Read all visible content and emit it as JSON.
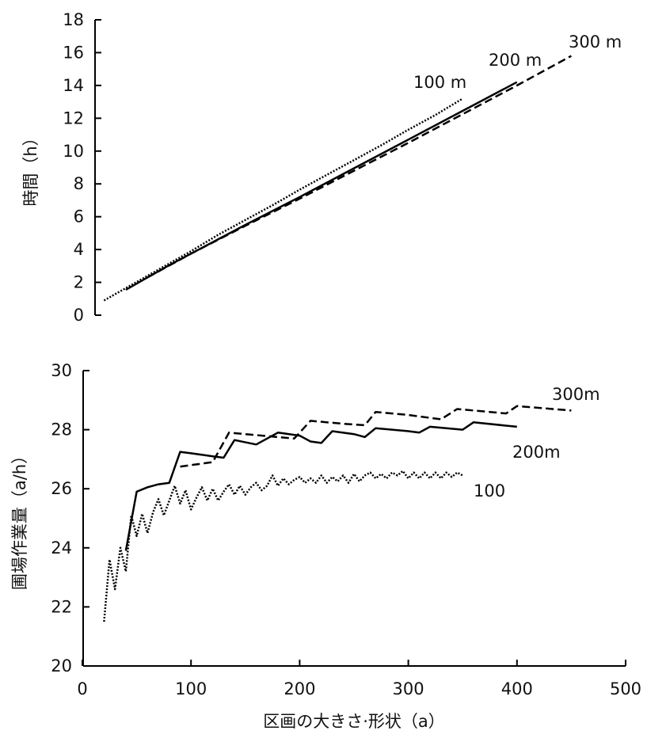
{
  "chart_data": [
    {
      "type": "line",
      "ylabel": "時間（h）",
      "xlabel": "",
      "xlim": [
        0,
        500
      ],
      "ylim": [
        0,
        18
      ],
      "yticks": [
        0,
        2,
        4,
        6,
        8,
        10,
        12,
        14,
        16,
        18
      ],
      "series": [
        {
          "name": "100 m",
          "style": "dotted",
          "x": [
            20,
            40,
            60,
            80,
            100,
            125,
            150,
            175,
            200,
            225,
            250,
            275,
            300,
            325,
            350
          ],
          "y": [
            0.9,
            1.65,
            2.4,
            3.15,
            3.9,
            4.9,
            5.8,
            6.7,
            7.65,
            8.55,
            9.45,
            10.35,
            11.3,
            12.2,
            13.2
          ]
        },
        {
          "name": "200 m",
          "style": "solid",
          "x": [
            40,
            60,
            80,
            100,
            150,
            200,
            250,
            300,
            350,
            400
          ],
          "y": [
            1.55,
            2.3,
            3.05,
            3.75,
            5.5,
            7.2,
            8.95,
            10.7,
            12.45,
            14.2
          ]
        },
        {
          "name": "300 m",
          "style": "dashed",
          "x": [
            60,
            100,
            150,
            200,
            250,
            300,
            350,
            400,
            450
          ],
          "y": [
            2.3,
            3.75,
            5.45,
            7.1,
            8.8,
            10.5,
            12.25,
            14.0,
            15.8
          ]
        }
      ]
    },
    {
      "type": "line",
      "ylabel": "圃場作業量（a/h）",
      "xlabel": "区画の大きさ·形状（a）",
      "xlim": [
        0,
        500
      ],
      "ylim": [
        20,
        30
      ],
      "xticks": [
        0,
        100,
        200,
        300,
        400,
        500
      ],
      "yticks": [
        20,
        22,
        24,
        26,
        28,
        30
      ],
      "series": [
        {
          "name": "100",
          "style": "dotted",
          "x": [
            20,
            25,
            30,
            35,
            40,
            45,
            50,
            55,
            60,
            65,
            70,
            75,
            80,
            85,
            90,
            95,
            100,
            105,
            110,
            115,
            120,
            125,
            130,
            135,
            140,
            145,
            150,
            155,
            160,
            165,
            170,
            175,
            180,
            185,
            190,
            195,
            200,
            205,
            210,
            215,
            220,
            225,
            230,
            235,
            240,
            245,
            250,
            255,
            260,
            265,
            270,
            275,
            280,
            285,
            290,
            295,
            300,
            305,
            310,
            315,
            320,
            325,
            330,
            335,
            340,
            345,
            350
          ],
          "y": [
            21.5,
            23.6,
            22.6,
            24.0,
            23.2,
            25.1,
            24.4,
            25.15,
            24.5,
            25.2,
            25.65,
            25.1,
            25.6,
            26.1,
            25.5,
            25.95,
            25.3,
            25.7,
            26.05,
            25.6,
            26.0,
            25.6,
            25.9,
            26.15,
            25.8,
            26.1,
            25.8,
            26.05,
            26.2,
            25.95,
            26.1,
            26.45,
            26.1,
            26.35,
            26.15,
            26.3,
            26.4,
            26.2,
            26.35,
            26.2,
            26.45,
            26.2,
            26.4,
            26.25,
            26.45,
            26.2,
            26.5,
            26.25,
            26.45,
            26.55,
            26.35,
            26.5,
            26.35,
            26.55,
            26.45,
            26.6,
            26.35,
            26.55,
            26.35,
            26.55,
            26.35,
            26.55,
            26.35,
            26.55,
            26.4,
            26.55,
            26.45
          ]
        },
        {
          "name": "200m",
          "style": "solid",
          "x": [
            40,
            50,
            60,
            70,
            80,
            90,
            100,
            120,
            130,
            140,
            160,
            180,
            200,
            210,
            220,
            230,
            250,
            260,
            270,
            300,
            310,
            320,
            350,
            360,
            400
          ],
          "y": [
            23.9,
            25.9,
            26.05,
            26.15,
            26.2,
            27.25,
            27.2,
            27.1,
            27.05,
            27.65,
            27.5,
            27.9,
            27.8,
            27.6,
            27.55,
            27.95,
            27.85,
            27.75,
            28.05,
            27.95,
            27.9,
            28.1,
            28.0,
            28.25,
            28.1
          ]
        },
        {
          "name": "300m",
          "style": "dashed",
          "x": [
            90,
            120,
            135,
            195,
            210,
            240,
            260,
            270,
            300,
            330,
            345,
            390,
            400,
            450
          ],
          "y": [
            26.75,
            26.9,
            27.9,
            27.7,
            28.3,
            28.2,
            28.15,
            28.6,
            28.5,
            28.35,
            28.7,
            28.55,
            28.8,
            28.65
          ]
        }
      ]
    }
  ]
}
